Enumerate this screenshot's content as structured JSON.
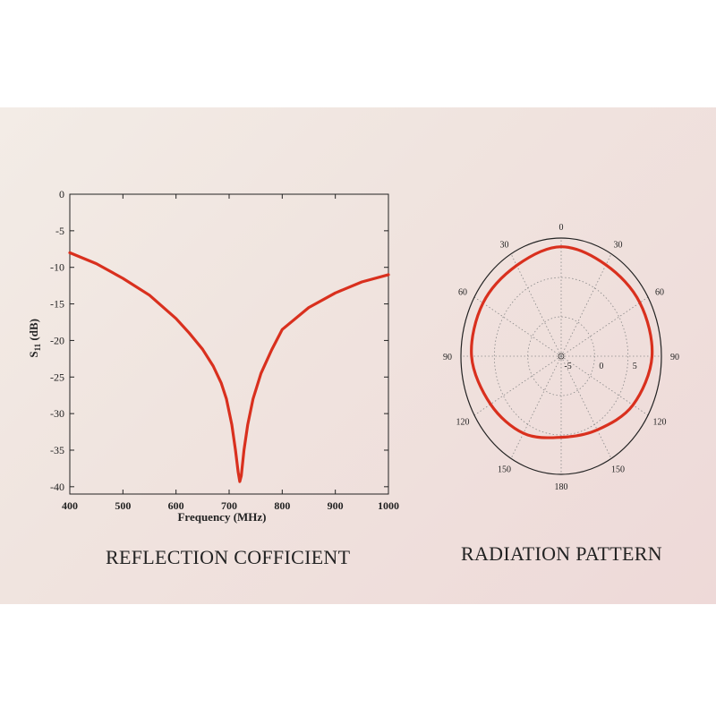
{
  "captions": {
    "left": "REFLECTION COFFICIENT",
    "right": "RADIATION PATTERN"
  },
  "colors": {
    "curve": "#d9301e",
    "axis": "#222222",
    "grid": "#888888",
    "background": "#f2e6e1"
  },
  "chart_data": [
    {
      "type": "line",
      "title": "",
      "xlabel": "Frequency (MHz)",
      "ylabel_main": "S",
      "ylabel_sub": "11",
      "ylabel_unit": " (dB)",
      "xlim": [
        400,
        1000
      ],
      "ylim": [
        -41,
        0
      ],
      "xticks": [
        400,
        500,
        600,
        700,
        800,
        900,
        1000
      ],
      "yticks": [
        0,
        -5,
        -10,
        -15,
        -20,
        -25,
        -30,
        -35,
        -40
      ],
      "grid": false,
      "series": [
        {
          "x": [
            400,
            450,
            500,
            550,
            600,
            625,
            650,
            670,
            685,
            695,
            705,
            712,
            717,
            720,
            723,
            728,
            735,
            745,
            760,
            780,
            800,
            850,
            900,
            950,
            1000
          ],
          "y": [
            -8,
            -9.5,
            -11.5,
            -13.8,
            -17,
            -19,
            -21.2,
            -23.5,
            -25.8,
            -28,
            -31.5,
            -35,
            -38,
            -39.3,
            -38.5,
            -35,
            -31.5,
            -28,
            -24.5,
            -21.3,
            -18.5,
            -15.5,
            -13.5,
            -12,
            -11
          ]
        }
      ]
    },
    {
      "type": "polar",
      "title": "",
      "angle_labels": [
        "0",
        "30",
        "60",
        "90",
        "120",
        "150",
        "180",
        "150",
        "120",
        "90",
        "60",
        "30"
      ],
      "radial_labels": [
        "-5",
        "0",
        "5"
      ],
      "r_range": [
        -5,
        10
      ],
      "grid": true,
      "series": [
        {
          "angle_deg": [
            0,
            30,
            60,
            90,
            120,
            150,
            180,
            210,
            240,
            270,
            300,
            330
          ],
          "r": [
            8.9,
            8.4,
            8.6,
            8.6,
            7.4,
            5.8,
            5.3,
            6.3,
            7.2,
            8.4,
            8.5,
            8.3
          ]
        }
      ]
    }
  ]
}
